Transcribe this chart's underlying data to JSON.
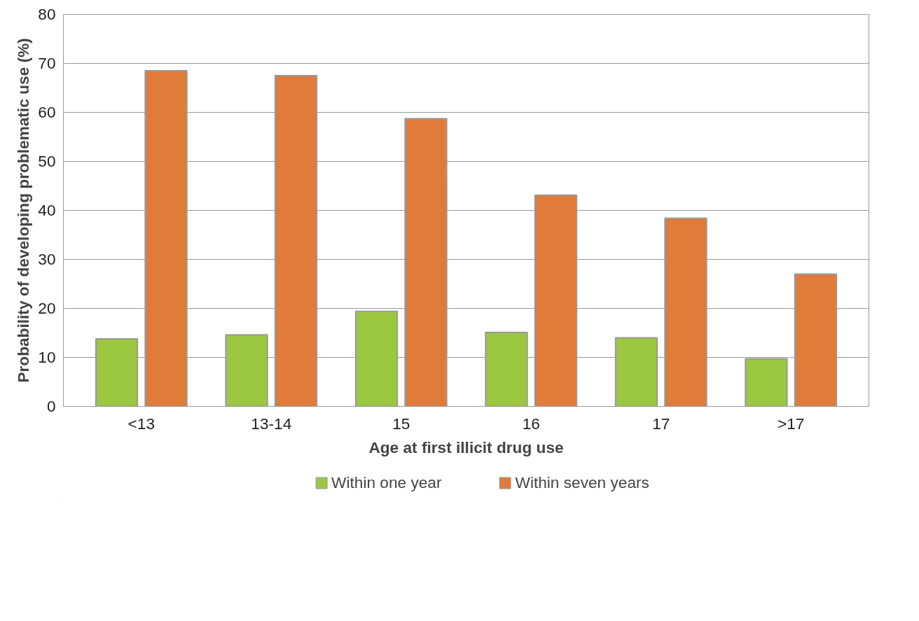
{
  "chart_data": {
    "type": "bar",
    "xlabel": "Age at first illicit drug use",
    "ylabel": "Probability of developing problematic use (%)",
    "categories": [
      "<13",
      "13-14",
      "15",
      "16",
      "17",
      ">17"
    ],
    "series": [
      {
        "name": "Within one year",
        "color": "#9cc741",
        "values": [
          13.8,
          14.6,
          19.4,
          15.1,
          14.0,
          9.7
        ]
      },
      {
        "name": "Within seven years",
        "color": "#e07b39",
        "values": [
          68.5,
          67.5,
          58.7,
          43.1,
          38.4,
          27.0
        ]
      }
    ],
    "ylim": [
      0,
      80
    ],
    "yticks": [
      0,
      10,
      20,
      30,
      40,
      50,
      60,
      70,
      80
    ],
    "grid": "y",
    "legend": "bottom"
  }
}
